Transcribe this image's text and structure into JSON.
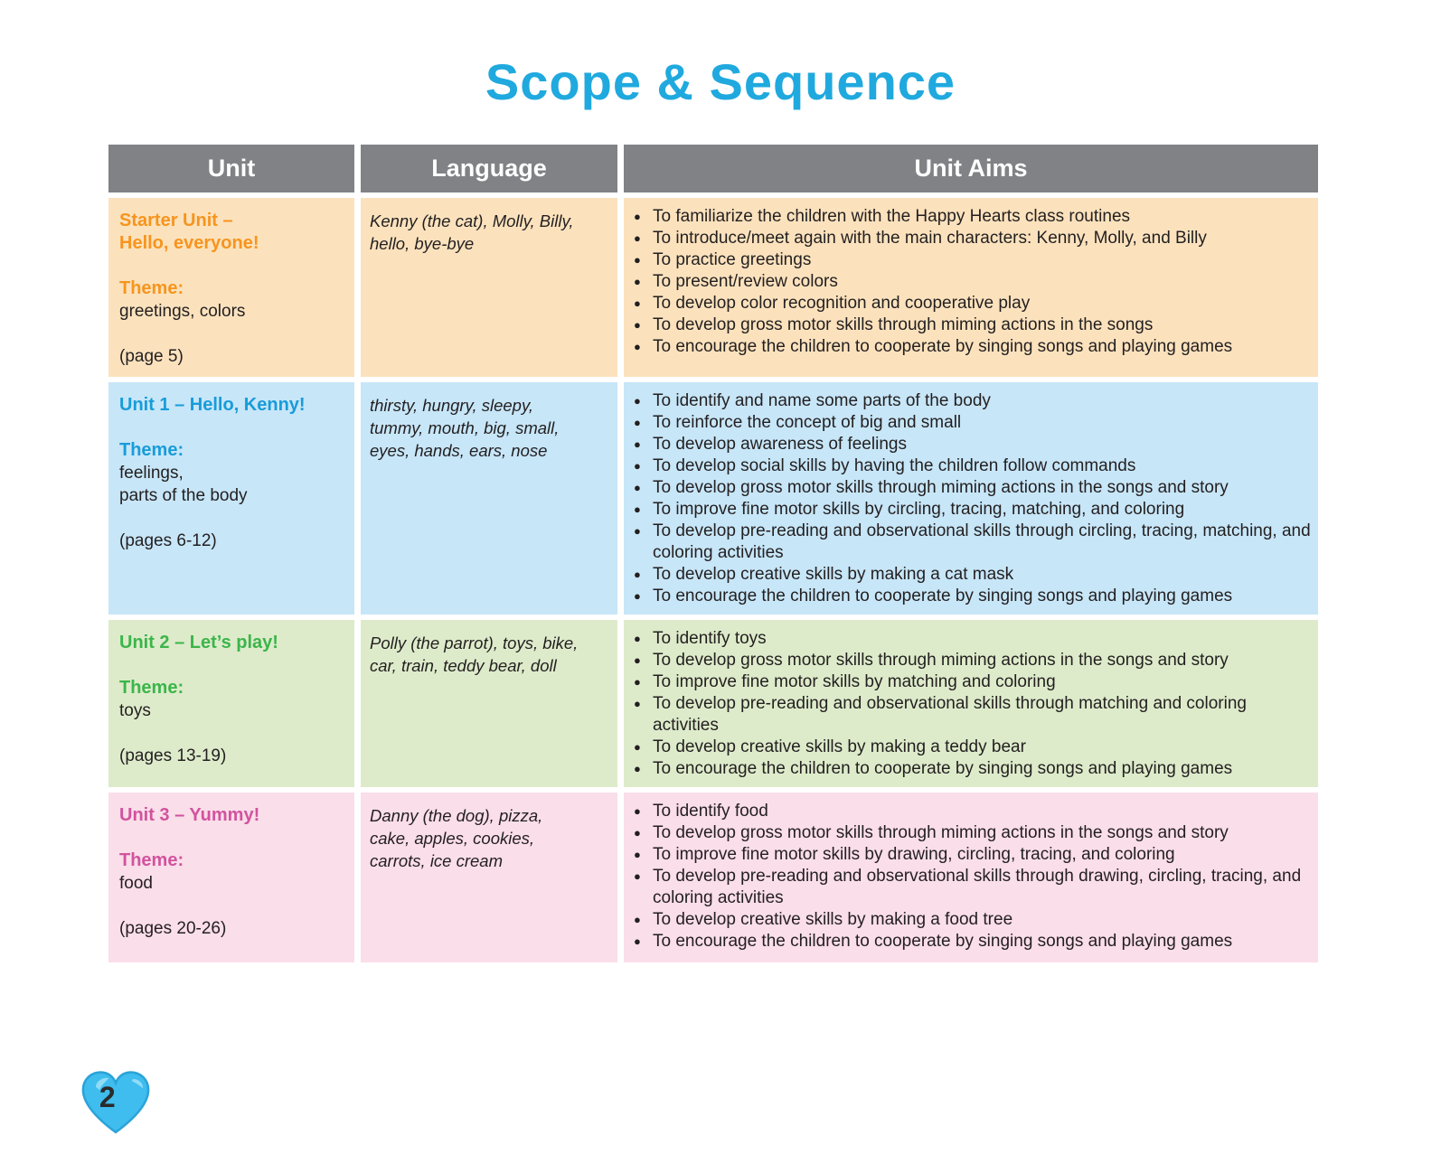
{
  "page": {
    "title": "Scope & Sequence",
    "page_number": "2"
  },
  "colors": {
    "title": "#20A9DE",
    "header_bg": "#808285",
    "header_text": "#FFFFFF",
    "body_text": "#231F20",
    "heart_fill": "#3EBDEE",
    "heart_edge": "#2BA3D8"
  },
  "table": {
    "headers": [
      "Unit",
      "Language",
      "Unit Aims"
    ],
    "rows": [
      {
        "unit": {
          "title": "Starter Unit –\nHello, everyone!",
          "theme_label": "Theme:",
          "theme": "greetings, colors",
          "pages": "(page 5)"
        },
        "language": "Kenny (the cat), Molly, Billy,\nhello, bye-bye",
        "aims": [
          "To familiarize the children with the Happy Hearts class routines",
          "To introduce/meet again with the main characters: Kenny, Molly, and Billy",
          "To practice greetings",
          "To present/review colors",
          "To develop color recognition and cooperative play",
          "To develop gross motor skills through miming actions in the songs",
          "To encourage the children to cooperate by singing songs and playing games"
        ],
        "colors": {
          "accent": "#F7941E",
          "background": "#FBE2BD"
        }
      },
      {
        "unit": {
          "title": "Unit 1 – Hello, Kenny!",
          "theme_label": "Theme:",
          "theme": "feelings,\nparts of the body",
          "pages": "(pages 6-12)"
        },
        "language": "thirsty, hungry, sleepy,\ntummy, mouth, big, small,\neyes, hands, ears, nose",
        "aims": [
          "To identify and name some parts of the body",
          "To reinforce the concept of big and small",
          "To develop awareness of feelings",
          "To develop social skills by having the children follow commands",
          "To develop gross motor skills through miming actions in the songs and story",
          "To improve fine motor skills by circling, tracing, matching, and coloring",
          "To develop pre-reading and observational skills through circling, tracing, matching, and coloring activities",
          "To develop creative skills by making a cat mask",
          "To encourage the children to cooperate by singing songs and playing games"
        ],
        "colors": {
          "accent": "#189CD9",
          "background": "#C7E6F8"
        }
      },
      {
        "unit": {
          "title": "Unit 2 – Let’s play!",
          "theme_label": "Theme:",
          "theme": "toys",
          "pages": "(pages 13-19)"
        },
        "language": "Polly (the parrot), toys, bike,\ncar, train, teddy bear, doll",
        "aims": [
          "To identify toys",
          "To develop gross motor skills through miming actions in the songs and story",
          "To improve fine motor skills by matching and coloring",
          "To develop pre-reading and observational skills through matching and coloring activities",
          "To develop creative skills by making a teddy bear",
          "To encourage the children to cooperate by singing songs and playing games"
        ],
        "colors": {
          "accent": "#3BB54A",
          "background": "#DDEBCA"
        }
      },
      {
        "unit": {
          "title": "Unit 3 – Yummy!",
          "theme_label": "Theme:",
          "theme": "food",
          "pages": "(pages 20-26)"
        },
        "language": "Danny (the dog), pizza,\ncake, apples, cookies,\ncarrots, ice cream",
        "aims": [
          "To identify food",
          "To develop gross motor skills through miming actions in the songs and story",
          "To improve fine motor skills by drawing, circling, tracing, and coloring",
          "To develop pre-reading and observational skills through drawing, circling, tracing, and coloring activities",
          "To develop creative skills by making a food tree",
          "To encourage the children to cooperate by singing songs and playing games"
        ],
        "colors": {
          "accent": "#D1539E",
          "background": "#FADEE9"
        }
      }
    ]
  }
}
